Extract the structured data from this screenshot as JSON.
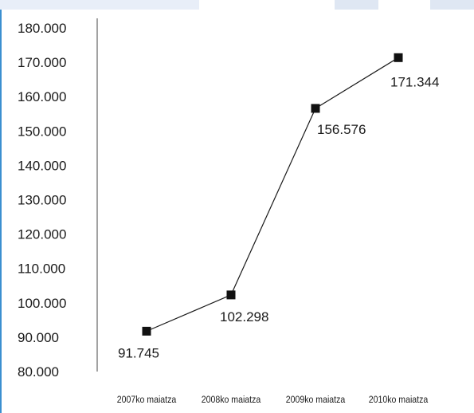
{
  "theme": {
    "line_color": "#1a1a1a",
    "marker_color": "#111111",
    "frame_accent": "#3b8fd0",
    "band_color": "#e8eef8",
    "band_color_alt": "#dfe7f3"
  },
  "chart_data": {
    "type": "line",
    "title": "",
    "xlabel": "",
    "ylabel": "",
    "categories": [
      "2007ko maiatza",
      "2008ko maiatza",
      "2009ko maiatza",
      "2010ko maiatza"
    ],
    "series": [
      {
        "values": [
          91745,
          102298,
          156576,
          171344
        ]
      }
    ],
    "data_labels": [
      "91.745",
      "102.298",
      "156.576",
      "171.344"
    ],
    "ylim": [
      80000,
      180000
    ],
    "yticks": [
      80000,
      90000,
      100000,
      110000,
      120000,
      130000,
      140000,
      150000,
      160000,
      170000,
      180000
    ],
    "ytick_labels": [
      "80.000",
      "90.000",
      "100.000",
      "110.000",
      "120.000",
      "130.000",
      "140.000",
      "150.000",
      "160.000",
      "170.000",
      "180.000"
    ],
    "grid": false,
    "marker": "square",
    "legend": "none"
  }
}
